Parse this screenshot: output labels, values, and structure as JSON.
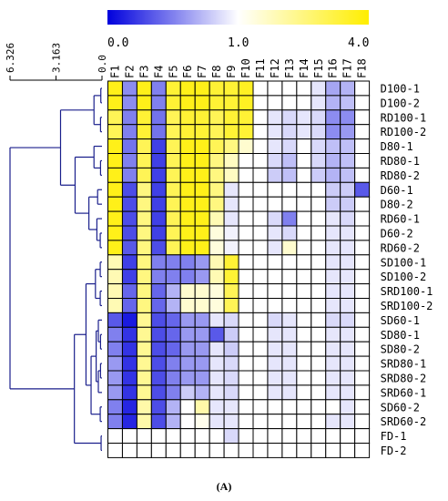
{
  "caption": "(A)",
  "chart_data": {
    "type": "heatmap",
    "colorbar": {
      "tick_labels": [
        "0.0",
        "1.0",
        "4.0"
      ],
      "scale": "diverging, 0.0 to 4.0 with 1.0 at the midpoint",
      "colors": {
        "low": "#0000dd",
        "mid": "#ffffff",
        "high": "#ffee00"
      }
    },
    "dendrogram": {
      "axis_ticks": [
        "6.326",
        "3.163",
        "0.0"
      ],
      "line_color": "#1a1f8c"
    },
    "columns": [
      "F1",
      "F2",
      "F3",
      "F4",
      "F5",
      "F6",
      "F7",
      "F8",
      "F9",
      "F10",
      "F11",
      "F12",
      "F13",
      "F14",
      "F15",
      "F16",
      "F17",
      "F18"
    ],
    "rows": [
      "D100-1",
      "D100-2",
      "RD100-1",
      "RD100-2",
      "D80-1",
      "RD80-1",
      "RD80-2",
      "D60-1",
      "D80-2",
      "RD60-1",
      "D60-2",
      "RD60-2",
      "SD100-1",
      "SD100-2",
      "SRD100-1",
      "SRD100-2",
      "SD60-1",
      "SD80-1",
      "SD80-2",
      "SRD80-1",
      "SRD80-2",
      "SRD60-1",
      "SD60-2",
      "SRD60-2",
      "FD-1",
      "FD-2"
    ],
    "values": [
      [
        3.5,
        0.55,
        3.5,
        0.5,
        3,
        3.5,
        3.5,
        3,
        3,
        3.3,
        1,
        1,
        1,
        1,
        0.9,
        0.65,
        0.7,
        1
      ],
      [
        3.5,
        0.55,
        3.5,
        0.5,
        3,
        3.5,
        3.5,
        3,
        3,
        3.3,
        1,
        1,
        1,
        1,
        0.9,
        0.7,
        0.75,
        1
      ],
      [
        2.5,
        0.5,
        3,
        0.45,
        2.5,
        3,
        3,
        2.5,
        3,
        3,
        1,
        0.9,
        0.85,
        0.9,
        0.85,
        0.55,
        0.55,
        1
      ],
      [
        2.5,
        0.5,
        3,
        0.45,
        2.5,
        3,
        3,
        2.5,
        3,
        3,
        1,
        0.9,
        0.85,
        0.9,
        0.85,
        0.55,
        0.6,
        1
      ],
      [
        3.5,
        0.45,
        2.5,
        0.25,
        2.5,
        3.5,
        3.5,
        2.5,
        2,
        1.3,
        1,
        0.9,
        0.85,
        1,
        0.85,
        0.75,
        0.75,
        1
      ],
      [
        3.5,
        0.5,
        2.5,
        0.25,
        2.5,
        3.5,
        3.5,
        2,
        1.4,
        1,
        1,
        0.85,
        0.75,
        1,
        0.85,
        0.7,
        0.75,
        1
      ],
      [
        3.5,
        0.5,
        2.5,
        0.25,
        2.5,
        3.5,
        3.5,
        2,
        1.4,
        1,
        1,
        0.8,
        0.75,
        1,
        0.8,
        0.7,
        0.75,
        1
      ],
      [
        3.5,
        0.3,
        2,
        0.25,
        2.5,
        3.5,
        3.5,
        2,
        0.9,
        1,
        1,
        1,
        1,
        1,
        1,
        0.8,
        0.8,
        0.35
      ],
      [
        3.5,
        0.3,
        2,
        0.25,
        2.5,
        3.5,
        3.5,
        2,
        0.9,
        1,
        1,
        1,
        1,
        1,
        1,
        0.8,
        0.8,
        1
      ],
      [
        3.5,
        0.3,
        2,
        0.25,
        2.5,
        3.5,
        3.5,
        1.5,
        0.9,
        1,
        1,
        0.85,
        0.5,
        1,
        1,
        0.9,
        0.85,
        1
      ],
      [
        3.5,
        0.3,
        2,
        0.25,
        2.5,
        3.5,
        3.5,
        1.2,
        0.95,
        1,
        1,
        0.9,
        0.85,
        1,
        1,
        0.9,
        0.9,
        1
      ],
      [
        3.5,
        0.35,
        2,
        0.3,
        2.5,
        3.5,
        3.5,
        1.2,
        0.95,
        1,
        1,
        0.9,
        1.3,
        1,
        1,
        0.9,
        0.9,
        1
      ],
      [
        1.5,
        0.25,
        2,
        0.5,
        0.5,
        0.5,
        0.6,
        1.5,
        3,
        1,
        1,
        1,
        1,
        1,
        1,
        0.9,
        0.9,
        1
      ],
      [
        1.5,
        0.25,
        2,
        0.5,
        0.5,
        0.5,
        0.6,
        1.5,
        3,
        1,
        1,
        1,
        1,
        1,
        1,
        0.9,
        0.9,
        1
      ],
      [
        1.5,
        0.4,
        2,
        0.4,
        0.7,
        1.3,
        1.3,
        1.2,
        2.5,
        1,
        1,
        1,
        1,
        1,
        1,
        0.9,
        0.9,
        1
      ],
      [
        1.5,
        0.4,
        2,
        0.4,
        0.7,
        1.3,
        1.3,
        1.2,
        2.5,
        1,
        1,
        1,
        1,
        1,
        1,
        0.9,
        0.9,
        1
      ],
      [
        0.35,
        0.1,
        1.8,
        0.3,
        0.4,
        0.6,
        0.6,
        0.9,
        0.85,
        1,
        1,
        0.85,
        0.9,
        1,
        1,
        0.85,
        0.85,
        1
      ],
      [
        0.5,
        0.2,
        1.8,
        0.3,
        0.4,
        0.6,
        0.6,
        0.35,
        0.8,
        1,
        1,
        0.9,
        0.9,
        1,
        1,
        0.9,
        0.9,
        1
      ],
      [
        0.5,
        0.2,
        1.8,
        0.3,
        0.4,
        0.6,
        0.6,
        0.9,
        0.8,
        1,
        1,
        0.9,
        0.9,
        1,
        1,
        0.9,
        0.9,
        1
      ],
      [
        0.6,
        0.2,
        1.8,
        0.3,
        0.5,
        0.6,
        0.6,
        0.9,
        0.85,
        1,
        1,
        0.9,
        0.9,
        1,
        1,
        0.9,
        0.9,
        1
      ],
      [
        0.6,
        0.2,
        1.8,
        0.3,
        0.5,
        0.6,
        0.6,
        0.9,
        0.85,
        1,
        1,
        0.9,
        0.9,
        1,
        1,
        0.9,
        0.9,
        1
      ],
      [
        0.6,
        0.2,
        1.8,
        0.3,
        0.5,
        0.8,
        0.7,
        0.9,
        0.85,
        1,
        1,
        0.9,
        0.9,
        1,
        1,
        0.9,
        0.9,
        1
      ],
      [
        0.5,
        0.15,
        1.6,
        0.3,
        0.7,
        1,
        1.6,
        0.9,
        0.9,
        1,
        1,
        1,
        1,
        1,
        1,
        1,
        0.9,
        1
      ],
      [
        0.5,
        0.15,
        1.6,
        0.3,
        0.7,
        1,
        1.1,
        0.9,
        0.9,
        1,
        1,
        1,
        1,
        1,
        1,
        0.9,
        0.9,
        1
      ],
      [
        1,
        1,
        1,
        1,
        1,
        1,
        1,
        1,
        0.85,
        1,
        1,
        1,
        1,
        1,
        1,
        1,
        1,
        1
      ],
      [
        1,
        1,
        1,
        1,
        1,
        1,
        1,
        1,
        1,
        1,
        1,
        1,
        1,
        1,
        1,
        1,
        1,
        1
      ]
    ],
    "dendrogram_tree": {
      "h": 6.326,
      "c": [
        {
          "h": 2.85,
          "c": [
            {
              "h": 0.55,
              "c": [
                {
                  "h": 0.08,
                  "c": [
                    0,
                    1
                  ]
                },
                {
                  "h": 0.1,
                  "c": [
                    2,
                    3
                  ]
                }
              ]
            },
            {
              "h": 1.85,
              "c": [
                {
                  "h": 0.55,
                  "c": [
                    4,
                    {
                      "h": 0.1,
                      "c": [
                        5,
                        6
                      ]
                    }
                  ]
                },
                {
                  "h": 0.9,
                  "c": [
                    {
                      "h": 0.3,
                      "c": [
                        7,
                        8
                      ]
                    },
                    {
                      "h": 0.35,
                      "c": [
                        9,
                        {
                          "h": 0.12,
                          "c": [
                            10,
                            11
                          ]
                        }
                      ]
                    }
                  ]
                }
              ]
            }
          ]
        },
        {
          "h": 1.9,
          "c": [
            {
              "h": 1.1,
              "c": [
                {
                  "h": 0.45,
                  "c": [
                    {
                      "h": 0.12,
                      "c": [
                        12,
                        13
                      ]
                    },
                    {
                      "h": 0.12,
                      "c": [
                        14,
                        15
                      ]
                    }
                  ]
                },
                {
                  "h": 0.75,
                  "c": [
                    {
                      "h": 0.4,
                      "c": [
                        {
                          "h": 0.25,
                          "c": [
                            16,
                            {
                              "h": 0.1,
                              "c": [
                                17,
                                18
                              ]
                            }
                          ]
                        },
                        {
                          "h": 0.25,
                          "c": [
                            {
                              "h": 0.1,
                              "c": [
                                19,
                                20
                              ]
                            },
                            21
                          ]
                        }
                      ]
                    },
                    {
                      "h": 0.12,
                      "c": [
                        22,
                        23
                      ]
                    }
                  ]
                }
              ]
            },
            {
              "h": 0.06,
              "c": [
                24,
                25
              ]
            }
          ]
        }
      ]
    }
  }
}
